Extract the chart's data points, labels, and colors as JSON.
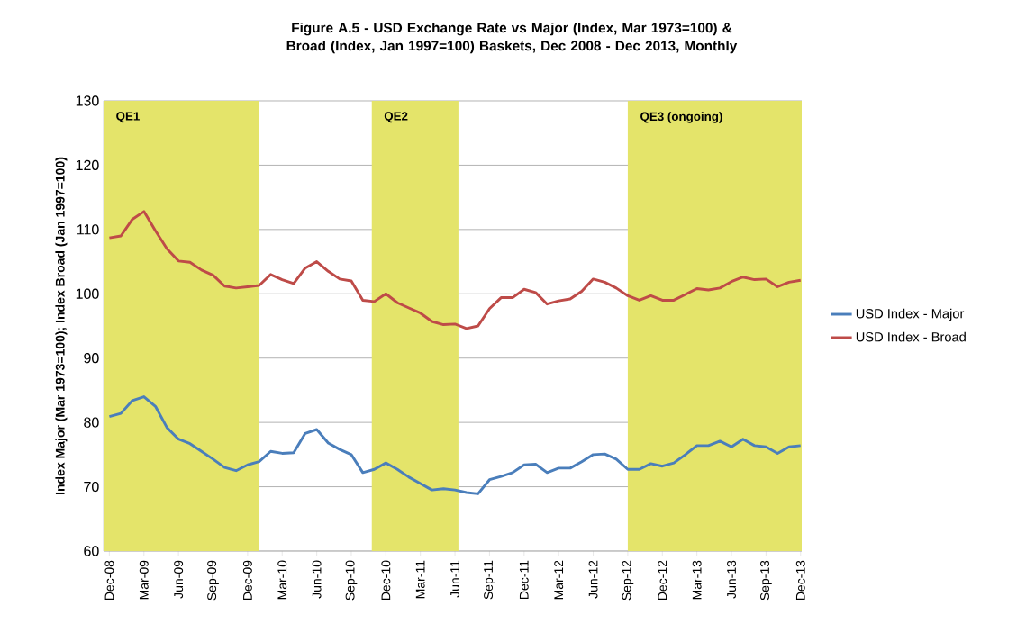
{
  "chart_data": {
    "type": "line",
    "title": "Figure A.5 - USD Exchange Rate vs Major (Index, Mar 1973=100) & Broad (Index, Jan 1997=100) Baskets, Dec 2008 - Dec 2013, Monthly",
    "ylabel": "Index Major (Mar 1973=100); Index Broad (Jan 1997=100)",
    "x": [
      "2008-12",
      "2009-01",
      "2009-02",
      "2009-03",
      "2009-04",
      "2009-05",
      "2009-06",
      "2009-07",
      "2009-08",
      "2009-09",
      "2009-10",
      "2009-11",
      "2009-12",
      "2010-01",
      "2010-02",
      "2010-03",
      "2010-04",
      "2010-05",
      "2010-06",
      "2010-07",
      "2010-08",
      "2010-09",
      "2010-10",
      "2010-11",
      "2010-12",
      "2011-01",
      "2011-02",
      "2011-03",
      "2011-04",
      "2011-05",
      "2011-06",
      "2011-07",
      "2011-08",
      "2011-09",
      "2011-10",
      "2011-11",
      "2011-12",
      "2012-01",
      "2012-02",
      "2012-03",
      "2012-04",
      "2012-05",
      "2012-06",
      "2012-07",
      "2012-08",
      "2012-09",
      "2012-10",
      "2012-11",
      "2012-12",
      "2013-01",
      "2013-02",
      "2013-03",
      "2013-04",
      "2013-05",
      "2013-06",
      "2013-07",
      "2013-08",
      "2013-09",
      "2013-10",
      "2013-11",
      "2013-12"
    ],
    "series": [
      {
        "name": "USD Index - Major",
        "color": "#4a7ebb",
        "values": [
          80.9,
          81.4,
          83.4,
          84.0,
          82.5,
          79.2,
          77.4,
          76.7,
          75.5,
          74.3,
          73.0,
          72.5,
          73.4,
          73.9,
          75.5,
          75.2,
          75.3,
          78.3,
          78.9,
          76.8,
          75.8,
          75.0,
          72.2,
          72.7,
          73.7,
          72.7,
          71.5,
          70.5,
          69.5,
          69.7,
          69.5,
          69.1,
          68.9,
          71.1,
          71.6,
          72.2,
          73.4,
          73.5,
          72.2,
          72.9,
          72.9,
          73.9,
          75.0,
          75.1,
          74.3,
          72.7,
          72.7,
          73.6,
          73.2,
          73.7,
          75.0,
          76.4,
          76.4,
          77.1,
          76.2,
          77.4,
          76.4,
          76.2,
          75.2,
          76.2,
          76.4
        ]
      },
      {
        "name": "USD Index - Broad",
        "color": "#be4b48",
        "values": [
          108.7,
          109.0,
          111.6,
          112.8,
          109.8,
          107.0,
          105.1,
          104.9,
          103.7,
          102.9,
          101.2,
          100.9,
          101.1,
          101.3,
          103.0,
          102.2,
          101.6,
          104.0,
          105.0,
          103.5,
          102.3,
          102.0,
          99.0,
          98.8,
          100.0,
          98.6,
          97.8,
          97.0,
          95.7,
          95.2,
          95.3,
          94.6,
          95.0,
          97.7,
          99.4,
          99.4,
          100.7,
          100.2,
          98.4,
          98.9,
          99.2,
          100.4,
          102.3,
          101.8,
          100.9,
          99.7,
          99.0,
          99.7,
          99.0,
          99.0,
          99.9,
          100.8,
          100.6,
          100.9,
          101.9,
          102.6,
          102.2,
          102.3,
          101.1,
          101.8,
          102.1
        ]
      }
    ],
    "xlim": [
      "2008-11-16",
      "2013-12-04"
    ],
    "xticks": [
      {
        "value": "2008-12",
        "label": "Dec-08"
      },
      {
        "value": "2009-03",
        "label": "Mar-09"
      },
      {
        "value": "2009-06",
        "label": "Jun-09"
      },
      {
        "value": "2009-09",
        "label": "Sep-09"
      },
      {
        "value": "2009-12",
        "label": "Dec-09"
      },
      {
        "value": "2010-03",
        "label": "Mar-10"
      },
      {
        "value": "2010-06",
        "label": "Jun-10"
      },
      {
        "value": "2010-09",
        "label": "Sep-10"
      },
      {
        "value": "2010-12",
        "label": "Dec-10"
      },
      {
        "value": "2011-03",
        "label": "Mar-11"
      },
      {
        "value": "2011-06",
        "label": "Jun-11"
      },
      {
        "value": "2011-09",
        "label": "Sep-11"
      },
      {
        "value": "2011-12",
        "label": "Dec-11"
      },
      {
        "value": "2012-03",
        "label": "Mar-12"
      },
      {
        "value": "2012-06",
        "label": "Jun-12"
      },
      {
        "value": "2012-09",
        "label": "Sep-12"
      },
      {
        "value": "2012-12",
        "label": "Dec-12"
      },
      {
        "value": "2013-03",
        "label": "Mar-13"
      },
      {
        "value": "2013-06",
        "label": "Jun-13"
      },
      {
        "value": "2013-09",
        "label": "Sep-13"
      },
      {
        "value": "2013-12",
        "label": "Dec-13"
      }
    ],
    "ylim": [
      60,
      130
    ],
    "yticks": [
      60,
      70,
      80,
      90,
      100,
      110,
      120,
      130
    ],
    "grid": "y",
    "legend": "right",
    "bands": [
      {
        "axis": "x",
        "from": "2008-11-16",
        "to": "2009-12-31",
        "label": "QE1",
        "color": "#e4e46a"
      },
      {
        "axis": "x",
        "from": "2010-10-25",
        "to": "2011-06-10",
        "label": "QE2",
        "color": "#e4e46a"
      },
      {
        "axis": "x",
        "from": "2012-09-01",
        "to": "2013-12-04",
        "label": "QE3 (ongoing)",
        "color": "#e4e46a"
      }
    ]
  }
}
